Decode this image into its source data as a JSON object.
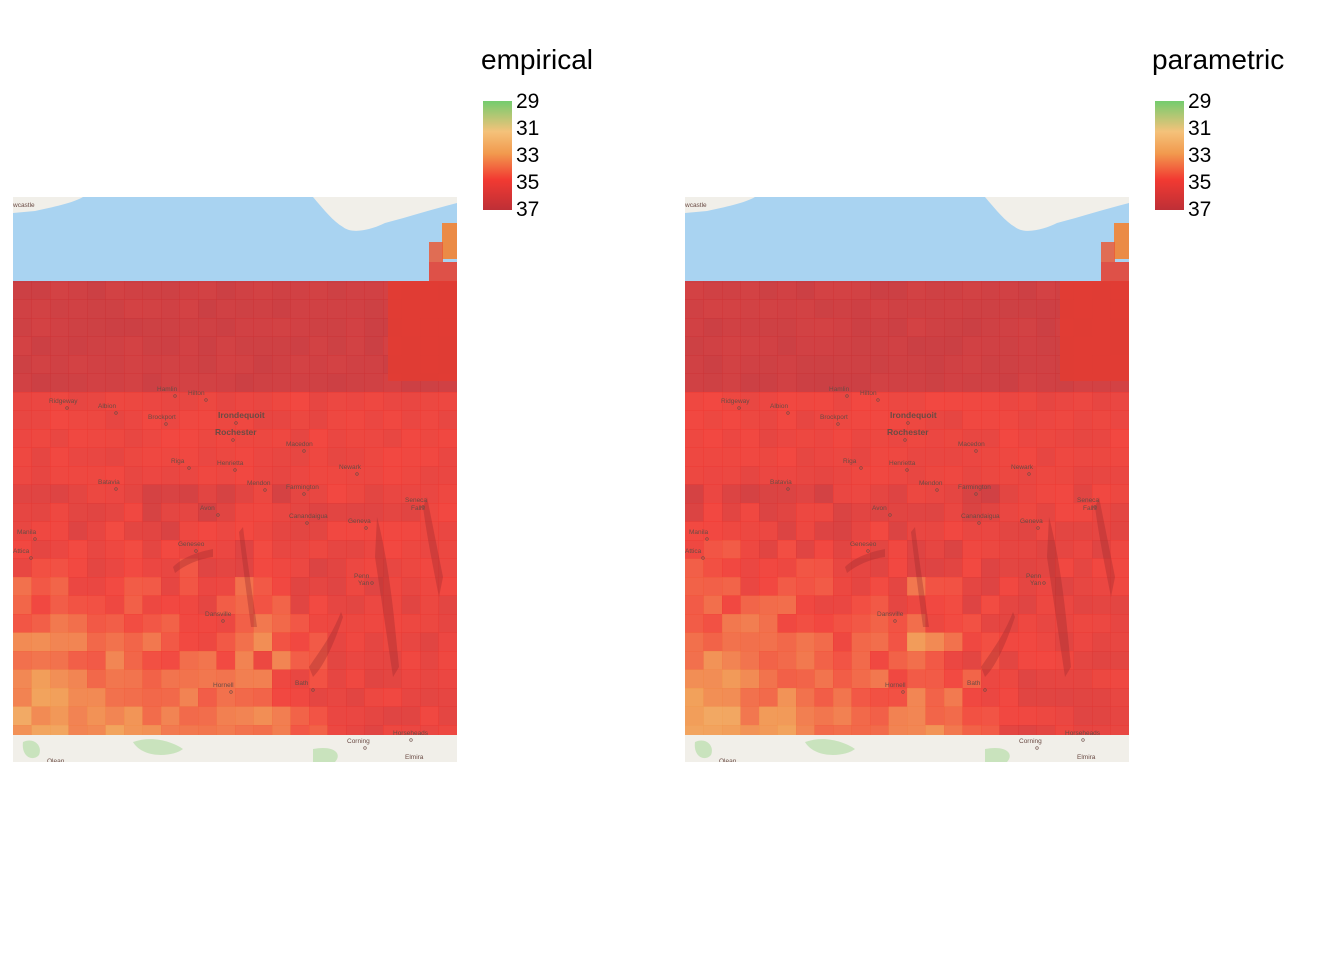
{
  "panels": [
    {
      "id": "empirical",
      "legend": {
        "title": "empirical",
        "ticks": [
          "29",
          "31",
          "33",
          "35",
          "37"
        ],
        "range": [
          29,
          37
        ]
      }
    },
    {
      "id": "parametric",
      "legend": {
        "title": "parametric",
        "ticks": [
          "29",
          "31",
          "33",
          "35",
          "37"
        ],
        "range": [
          29,
          37
        ]
      }
    }
  ],
  "colors": {
    "water": "#a9d3f1",
    "land": "#f1efe9",
    "scale": [
      "#74cc6e",
      "#f4c27a",
      "#f29a4e",
      "#f23a32",
      "#be2f36"
    ]
  },
  "places": [
    {
      "name": "wcastle",
      "bold": false
    },
    {
      "name": "Ridgeway",
      "bold": false
    },
    {
      "name": "Albion",
      "bold": false
    },
    {
      "name": "Hamlin",
      "bold": false
    },
    {
      "name": "Hilton",
      "bold": false
    },
    {
      "name": "Brockport",
      "bold": false
    },
    {
      "name": "Irondequoit",
      "bold": true
    },
    {
      "name": "Rochester",
      "bold": true
    },
    {
      "name": "Macedon",
      "bold": false
    },
    {
      "name": "Newark",
      "bold": false
    },
    {
      "name": "Riga",
      "bold": false
    },
    {
      "name": "Henrietta",
      "bold": false
    },
    {
      "name": "Batavia",
      "bold": false
    },
    {
      "name": "Mendon",
      "bold": false
    },
    {
      "name": "Farmington",
      "bold": false
    },
    {
      "name": "Seneca",
      "bold": false
    },
    {
      "name": "Falls",
      "bold": false
    },
    {
      "name": "Avon",
      "bold": false
    },
    {
      "name": "Canandaigua",
      "bold": false
    },
    {
      "name": "Geneva",
      "bold": false
    },
    {
      "name": "Manila",
      "bold": false
    },
    {
      "name": "Geneseo",
      "bold": false
    },
    {
      "name": "Attica",
      "bold": false
    },
    {
      "name": "Penn",
      "bold": false
    },
    {
      "name": "Yan",
      "bold": false
    },
    {
      "name": "Dansville",
      "bold": false
    },
    {
      "name": "Hornell",
      "bold": false
    },
    {
      "name": "Bath",
      "bold": false
    },
    {
      "name": "Corning",
      "bold": false
    },
    {
      "name": "Horseheads",
      "bold": false
    },
    {
      "name": "Elmira",
      "bold": false
    },
    {
      "name": "Olean",
      "bold": false
    }
  ]
}
